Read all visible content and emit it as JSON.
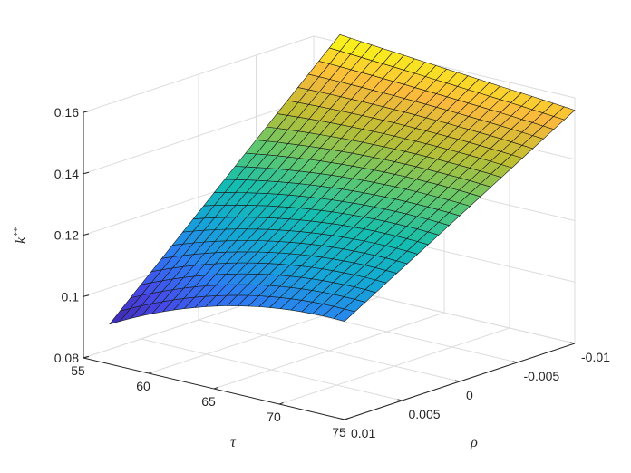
{
  "chart_data": {
    "type": "surface",
    "title": "",
    "colormap": "parula",
    "grid": true,
    "x_axis": {
      "label": "τ",
      "range": [
        55,
        75
      ],
      "ticks": [
        55,
        60,
        65,
        70,
        75
      ],
      "tick_labels": [
        "55",
        "60",
        "65",
        "70",
        "75"
      ]
    },
    "y_axis": {
      "label": "ρ",
      "range": [
        -0.01,
        0.01
      ],
      "ticks": [
        0.01,
        0.005,
        0,
        -0.005,
        -0.01
      ],
      "tick_labels": [
        "0.01",
        "0.005",
        "0",
        "-0.005",
        "-0.01"
      ]
    },
    "z_axis": {
      "label_base": "k",
      "label_sup": "**",
      "range": [
        0.08,
        0.16
      ],
      "ticks": [
        0.08,
        0.1,
        0.12,
        0.14,
        0.16
      ],
      "tick_labels": [
        "0.08",
        "0.1",
        "0.12",
        "0.14",
        "0.16"
      ]
    },
    "x_values": [
      57,
      75
    ],
    "y_values": [
      0.01,
      -0.01
    ],
    "corner_z": {
      "tau57_rho0.01": 0.093,
      "tau75_rho0.01": 0.112,
      "tau57_rho-0.01": 0.1625,
      "tau75_rho-0.01": 0.156
    },
    "mesh": {
      "rows": 22,
      "cols": 22
    }
  }
}
